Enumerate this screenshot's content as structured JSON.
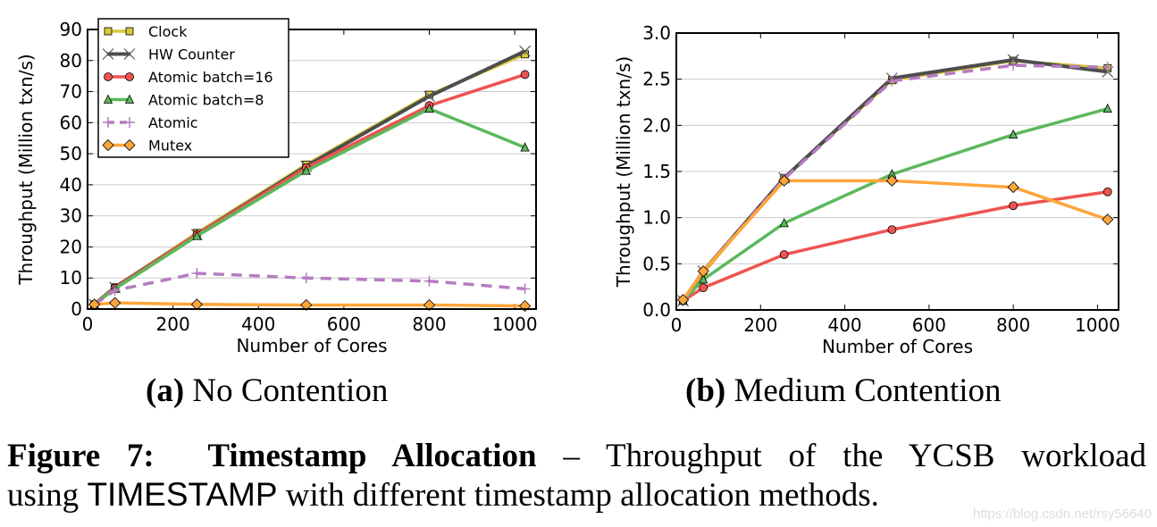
{
  "chart_data": [
    {
      "type": "line",
      "title": "",
      "xlabel": "Number of Cores",
      "ylabel": "Throughput (Million txn/s)",
      "xlim": [
        0,
        1050
      ],
      "ylim": [
        0,
        90
      ],
      "xticks": [
        0,
        200,
        400,
        600,
        800,
        1000
      ],
      "yticks": [
        0,
        10,
        20,
        30,
        40,
        50,
        60,
        70,
        80,
        90
      ],
      "grid": "horizontal",
      "legend": "top-left",
      "x": [
        16,
        64,
        256,
        512,
        800,
        1024
      ],
      "series": [
        {
          "name": "Clock",
          "color": "#d9c93a",
          "marker": "square",
          "dash": false,
          "values": [
            1.5,
            7,
            24.5,
            46.5,
            69,
            82
          ]
        },
        {
          "name": "HW Counter",
          "color": "#4d4d4d",
          "marker": "x",
          "dash": false,
          "values": [
            1.5,
            7,
            24,
            46,
            68.5,
            83
          ]
        },
        {
          "name": "Atomic batch=16",
          "color": "#ef5350",
          "marker": "circle",
          "dash": false,
          "values": [
            1.5,
            6.8,
            24,
            45.5,
            65.5,
            75.5
          ]
        },
        {
          "name": "Atomic batch=8",
          "color": "#5cb85c",
          "marker": "triangle",
          "dash": false,
          "values": [
            1.5,
            6.5,
            23.5,
            44.5,
            64.5,
            52
          ]
        },
        {
          "name": "Atomic",
          "color": "#b57cc0",
          "marker": "plus",
          "dash": true,
          "values": [
            1.5,
            6,
            11.5,
            10,
            9,
            6.5
          ]
        },
        {
          "name": "Mutex",
          "color": "#ffa53a",
          "marker": "diamond",
          "dash": false,
          "values": [
            1.5,
            2,
            1.5,
            1.3,
            1.3,
            1
          ]
        }
      ]
    },
    {
      "type": "line",
      "title": "",
      "xlabel": "Number of Cores",
      "ylabel": "Throughput (Million txn/s)",
      "xlim": [
        0,
        1050
      ],
      "ylim": [
        0,
        3.0
      ],
      "xticks": [
        0,
        200,
        400,
        600,
        800,
        1000
      ],
      "yticks": [
        "0.0",
        "0.5",
        "1.0",
        "1.5",
        "2.0",
        "2.5",
        "3.0"
      ],
      "grid": "horizontal",
      "x": [
        16,
        64,
        256,
        512,
        800,
        1024
      ],
      "series": [
        {
          "color": "#d9c93a",
          "marker": "square",
          "dash": false,
          "values": [
            0.1,
            0.4,
            1.43,
            2.49,
            2.7,
            2.62
          ]
        },
        {
          "color": "#4d4d4d",
          "marker": "x",
          "dash": false,
          "values": [
            0.1,
            0.42,
            1.43,
            2.51,
            2.71,
            2.58
          ]
        },
        {
          "color": "#ef5350",
          "marker": "circle",
          "dash": false,
          "values": [
            0.1,
            0.24,
            0.6,
            0.87,
            1.13,
            1.28
          ]
        },
        {
          "color": "#5cb85c",
          "marker": "triangle",
          "dash": false,
          "values": [
            0.1,
            0.33,
            0.94,
            1.47,
            1.9,
            2.18
          ]
        },
        {
          "color": "#b57cc0",
          "marker": "plus",
          "dash": true,
          "values": [
            0.1,
            0.42,
            1.42,
            2.48,
            2.65,
            2.63
          ]
        },
        {
          "color": "#ffa53a",
          "marker": "diamond",
          "dash": false,
          "values": [
            0.11,
            0.42,
            1.4,
            1.4,
            1.33,
            0.98
          ]
        }
      ]
    }
  ],
  "captions": {
    "a_label": "(a)",
    "a_text": " No Contention",
    "b_label": "(b)",
    "b_text": " Medium Contention"
  },
  "figure": {
    "label": "Figure 7:",
    "title": "Timestamp Allocation",
    "line1_rest": " – Throughput of the YCSB workload",
    "line2_pre": "using ",
    "line2_sans": "TIMESTAMP",
    "line2_post": " with different timestamp allocation methods."
  },
  "watermark": "https://blog.csdn.net/rsy56640"
}
